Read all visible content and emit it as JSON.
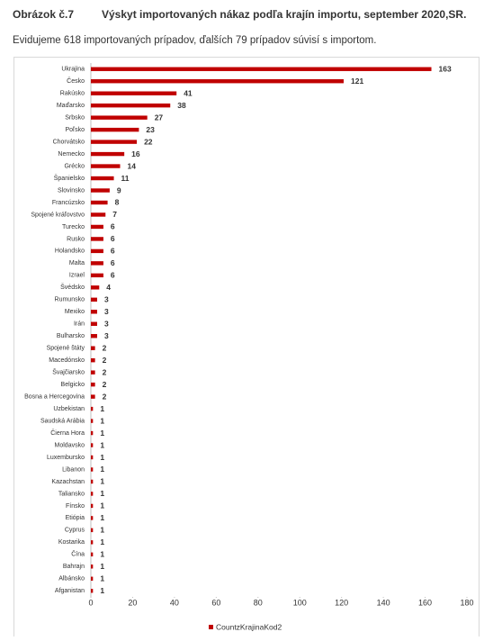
{
  "header": {
    "figure_label": "Obrázok č.7",
    "title": "Výskyt importovaných nákaz podľa krajín importu, september 2020,SR.",
    "subtitle": "Evidujeme 618 importovaných prípadov, ďalších 79 prípadov súvisí s importom."
  },
  "chart_data": {
    "type": "hbar",
    "categories": [
      "Ukrajina",
      "Česko",
      "Rakúsko",
      "Maďarsko",
      "Srbsko",
      "Poľsko",
      "Chorvátsko",
      "Nemecko",
      "Grécko",
      "Španielsko",
      "Slovinsko",
      "Francúzsko",
      "Spojené kráľovstvo",
      "Turecko",
      "Rusko",
      "Holandsko",
      "Malta",
      "Izrael",
      "Švédsko",
      "Rumunsko",
      "Mexiko",
      "Irán",
      "Bulharsko",
      "Spojené štáty",
      "Macedónsko",
      "Švajčiarsko",
      "Belgicko",
      "Bosna a Hercegovina",
      "Uzbekistan",
      "Saudská Arábia",
      "Čierna Hora",
      "Moldavsko",
      "Luxembursko",
      "Libanon",
      "Kazachstan",
      "Taliansko",
      "Fínsko",
      "Etiópia",
      "Cyprus",
      "Kostarika",
      "Čína",
      "Bahrajn",
      "Albánsko",
      "Afganistan"
    ],
    "series": [
      {
        "name": "CountzKrajinaKod2",
        "color": "#c00000",
        "values": [
          163,
          121,
          41,
          38,
          27,
          23,
          22,
          16,
          14,
          11,
          9,
          8,
          7,
          6,
          6,
          6,
          6,
          6,
          4,
          3,
          3,
          3,
          3,
          2,
          2,
          2,
          2,
          2,
          1,
          1,
          1,
          1,
          1,
          1,
          1,
          1,
          1,
          1,
          1,
          1,
          1,
          1,
          1,
          1
        ]
      }
    ],
    "xlim": [
      0,
      180
    ],
    "xticks": [
      0,
      20,
      40,
      60,
      80,
      100,
      120,
      140,
      160,
      180
    ],
    "legend": "bottom"
  }
}
